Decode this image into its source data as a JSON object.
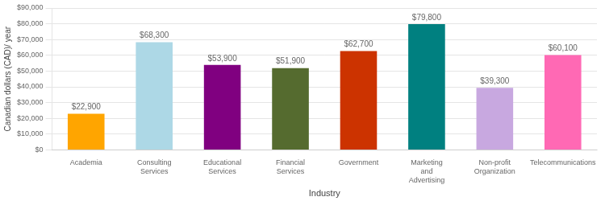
{
  "chart_data": {
    "type": "bar",
    "categories": [
      "Academia",
      "Consulting Services",
      "Educational Services",
      "Financial Services",
      "Government",
      "Marketing and\nAdvertising",
      "Non-profit\nOrganization",
      "Telecommunications"
    ],
    "values": [
      22900,
      68300,
      53900,
      51900,
      62700,
      79800,
      39300,
      60100
    ],
    "value_labels": [
      "$22,900",
      "$68,300",
      "$53,900",
      "$51,900",
      "$62,700",
      "$79,800",
      "$39,300",
      "$60,100"
    ],
    "data_labels": true,
    "colors": [
      "#FFA500",
      "#ADD8E6",
      "#800080",
      "#556B2F",
      "#CC3300",
      "#008080",
      "#C8A8E0",
      "#FF69B4"
    ],
    "xlabel": "Industry",
    "ylabel": "Canadian dollars (CAD)/ year",
    "ylim": [
      0,
      90000
    ],
    "yticks": [
      {
        "value": 0,
        "label": "$0"
      },
      {
        "value": 10000,
        "label": "$10,000"
      },
      {
        "value": 20000,
        "label": "$20,000"
      },
      {
        "value": 30000,
        "label": "$30,000"
      },
      {
        "value": 40000,
        "label": "$40,000"
      },
      {
        "value": 50000,
        "label": "$50,000"
      },
      {
        "value": 60000,
        "label": "$60,000"
      },
      {
        "value": 70000,
        "label": "$70,000"
      },
      {
        "value": 80000,
        "label": "$80,000"
      },
      {
        "value": 90000,
        "label": "$90,000"
      }
    ],
    "grid": true
  }
}
